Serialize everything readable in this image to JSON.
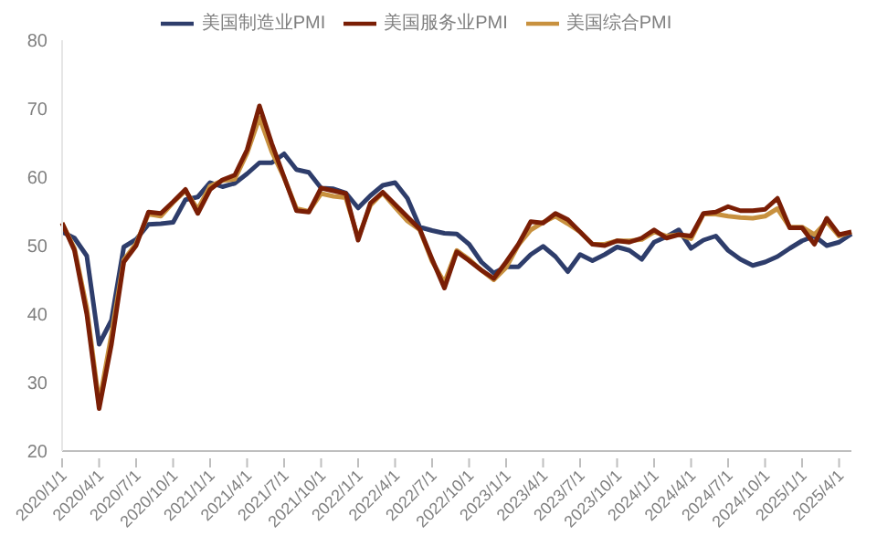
{
  "chart_data": {
    "type": "line",
    "categories": [
      "2020/1/1",
      null,
      null,
      "2020/4/1",
      null,
      null,
      "2020/7/1",
      null,
      null,
      "2020/10/1",
      null,
      null,
      "2021/1/1",
      null,
      null,
      "2021/4/1",
      null,
      null,
      "2021/7/1",
      null,
      null,
      "2021/10/1",
      null,
      null,
      "2022/1/1",
      null,
      null,
      "2022/4/1",
      null,
      null,
      "2022/7/1",
      null,
      null,
      "2022/10/1",
      null,
      null,
      "2023/1/1",
      null,
      null,
      "2023/4/1",
      null,
      null,
      "2023/7/1",
      null,
      null,
      "2023/10/1",
      null,
      null,
      "2024/1/1",
      null,
      null,
      "2024/4/1",
      null,
      null,
      "2024/7/1",
      null,
      null,
      "2024/10/1",
      null,
      null,
      "2025/1/1",
      null,
      null,
      "2025/4/1",
      null
    ],
    "series": [
      {
        "name": "美国制造业PMI",
        "color": "#2e3d6b",
        "values": [
          52.0,
          51.1,
          48.5,
          35.6,
          39.1,
          49.8,
          50.9,
          53.1,
          53.2,
          53.4,
          56.7,
          57.1,
          59.2,
          58.6,
          59.1,
          60.5,
          62.1,
          62.1,
          63.4,
          61.1,
          60.7,
          58.4,
          58.3,
          57.7,
          55.5,
          57.3,
          58.8,
          59.2,
          56.9,
          52.7,
          52.2,
          51.8,
          51.7,
          50.2,
          47.6,
          46.0,
          46.9,
          46.9,
          48.7,
          49.9,
          48.4,
          46.2,
          48.7,
          47.8,
          48.7,
          49.8,
          49.3,
          48.0,
          50.5,
          51.3,
          52.3,
          49.6,
          50.8,
          51.4,
          49.3,
          48.0,
          47.1,
          47.6,
          48.4,
          49.6,
          50.7,
          51.4,
          50.0,
          50.5,
          51.7
        ]
      },
      {
        "name": "美国综合PMI",
        "color": "#c8913f",
        "values": [
          53.3,
          49.6,
          40.9,
          27.0,
          37.0,
          47.9,
          50.3,
          54.6,
          54.3,
          56.3,
          58.0,
          55.3,
          58.7,
          59.5,
          59.7,
          63.5,
          68.7,
          63.7,
          59.9,
          55.4,
          55.0,
          57.6,
          57.2,
          57.0,
          51.1,
          55.9,
          57.7,
          55.6,
          53.6,
          52.3,
          47.7,
          44.6,
          49.3,
          48.0,
          46.4,
          45.0,
          46.8,
          50.1,
          52.3,
          53.4,
          54.3,
          53.2,
          52.0,
          50.2,
          50.2,
          50.7,
          50.7,
          50.9,
          52.0,
          51.4,
          51.6,
          51.0,
          54.6,
          54.6,
          54.3,
          54.1,
          54.0,
          54.3,
          55.4,
          52.7,
          52.7,
          51.6,
          53.5,
          51.4,
          52.0
        ]
      },
      {
        "name": "美国服务业PMI",
        "color": "#7a1e05",
        "values": [
          53.3,
          49.3,
          40.0,
          26.2,
          35.6,
          47.6,
          50.0,
          54.9,
          54.7,
          56.4,
          58.2,
          54.7,
          58.2,
          59.6,
          60.3,
          64.0,
          70.4,
          64.9,
          60.0,
          55.1,
          54.9,
          58.4,
          58.0,
          57.6,
          50.8,
          56.2,
          57.8,
          56.0,
          54.2,
          52.4,
          48.0,
          43.8,
          49.1,
          47.8,
          46.4,
          45.2,
          47.6,
          50.2,
          53.5,
          53.3,
          54.7,
          53.8,
          52.0,
          50.2,
          50.0,
          50.7,
          50.5,
          51.1,
          52.3,
          51.1,
          51.6,
          51.4,
          54.7,
          54.9,
          55.7,
          55.1,
          55.1,
          55.3,
          56.9,
          52.6,
          52.6,
          50.2,
          54.0,
          51.6,
          52.0
        ]
      }
    ],
    "ylim": [
      20,
      80
    ],
    "yticks": [
      20,
      30,
      40,
      50,
      60,
      70,
      80
    ],
    "grid": false,
    "legend": "top",
    "marker": "none",
    "line_style": "solid"
  }
}
